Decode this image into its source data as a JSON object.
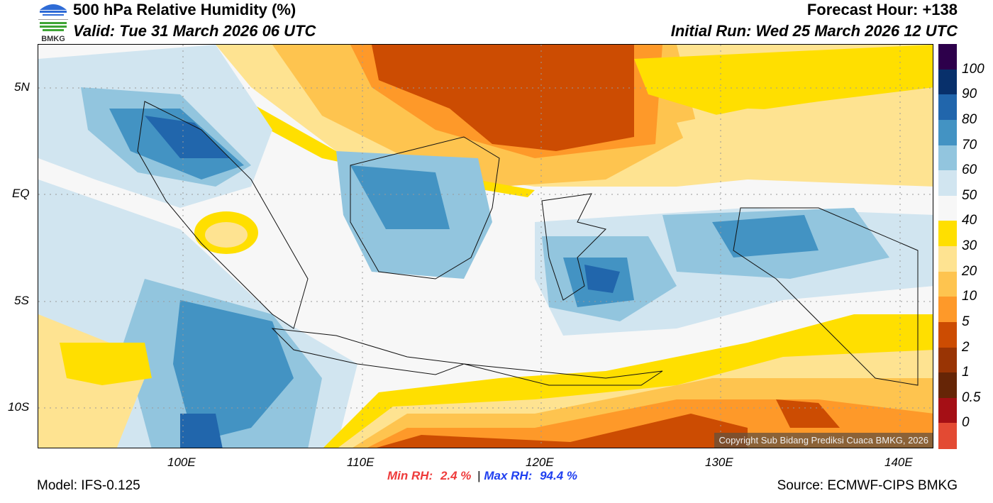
{
  "header": {
    "title": "500 hPa Relative Humidity (%)",
    "valid": "Valid: Tue 31 March 2026 06 UTC",
    "forecast_hour": "Forecast Hour: +138",
    "initial_run": "Initial Run: Wed 25 March 2026 12 UTC",
    "logo_text": "BMKG"
  },
  "axes": {
    "lat_labels": [
      "5N",
      "EQ",
      "5S",
      "10S"
    ],
    "lon_labels": [
      "100E",
      "110E",
      "120E",
      "130E",
      "140E"
    ]
  },
  "colorbar": {
    "labels": [
      "100",
      "90",
      "80",
      "70",
      "60",
      "50",
      "40",
      "30",
      "20",
      "10",
      "5",
      "2",
      "1",
      "0.5",
      "0"
    ],
    "colors": [
      "#2d004b",
      "#08306b",
      "#2166ac",
      "#4393c3",
      "#92c5de",
      "#d1e5f0",
      "#f7f7f7",
      "#ffdf00",
      "#fee391",
      "#fec44f",
      "#fe9929",
      "#cc4c02",
      "#993404",
      "#662506",
      "#a50f15",
      "#e34a33"
    ]
  },
  "stats": {
    "min_label": "Min RH:",
    "min_value": "2.4 %",
    "separator": "|",
    "max_label": "Max RH:",
    "max_value": "94.4 %"
  },
  "footer": {
    "model": "Model: IFS-0.125",
    "source": "Source: ECMWF-CIPS BMKG",
    "copyright": "Copyright Sub Bidang Prediksi Cuaca BMKG, 2026"
  }
}
